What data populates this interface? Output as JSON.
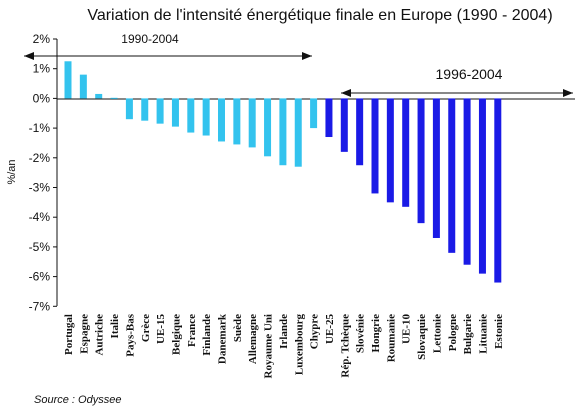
{
  "chart_data": {
    "type": "bar",
    "title": "Variation de l'intensité énergétique finale en Europe (1990 - 2004)",
    "ylabel": "%/an",
    "xlabel": "",
    "ylim": [
      -7,
      2
    ],
    "yticks": [
      "2%",
      "1%",
      "0%",
      "-1%",
      "-2%",
      "-3%",
      "-4%",
      "-5%",
      "-6%",
      "-7%"
    ],
    "grid": false,
    "categories": [
      "Portugal",
      "Espagne",
      "Autriche",
      "Italie",
      "Pays-Bas",
      "Grèce",
      "UE-15",
      "Belgique",
      "France",
      "Finlande",
      "Danemark",
      "Suède",
      "Allemagne",
      "Royaume Uni",
      "Irlande",
      "Luxembourg",
      "Chypre",
      "UE-25",
      "Rép. Tchèque",
      "Slovénie",
      "Hongrie",
      "Roumanie",
      "UE-10",
      "Slovaquie",
      "Lettonie",
      "Pologne",
      "Bulgarie",
      "Lituanie",
      "Estonie"
    ],
    "series": [
      {
        "name": "1990-2004",
        "color": "#33c3ee",
        "values": [
          1.25,
          0.8,
          0.15,
          0.02,
          -0.7,
          -0.75,
          -0.85,
          -0.95,
          -1.15,
          -1.25,
          -1.45,
          -1.55,
          -1.65,
          -1.95,
          -2.25,
          -2.3,
          -1.0,
          null,
          null,
          null,
          null,
          null,
          null,
          null,
          null,
          null,
          null,
          null,
          null
        ]
      },
      {
        "name": "1996-2004",
        "color": "#1a1ae6",
        "values": [
          null,
          null,
          null,
          null,
          null,
          null,
          null,
          null,
          null,
          null,
          null,
          null,
          null,
          null,
          null,
          null,
          null,
          -1.3,
          -1.8,
          -2.25,
          -3.2,
          -3.5,
          -3.65,
          -4.2,
          -4.7,
          -5.2,
          -5.6,
          -5.9,
          -6.2
        ]
      }
    ],
    "annotations": {
      "period1_label": "1990-2004",
      "period2_label": "1996-2004"
    },
    "source": "Source : Odyssee"
  }
}
